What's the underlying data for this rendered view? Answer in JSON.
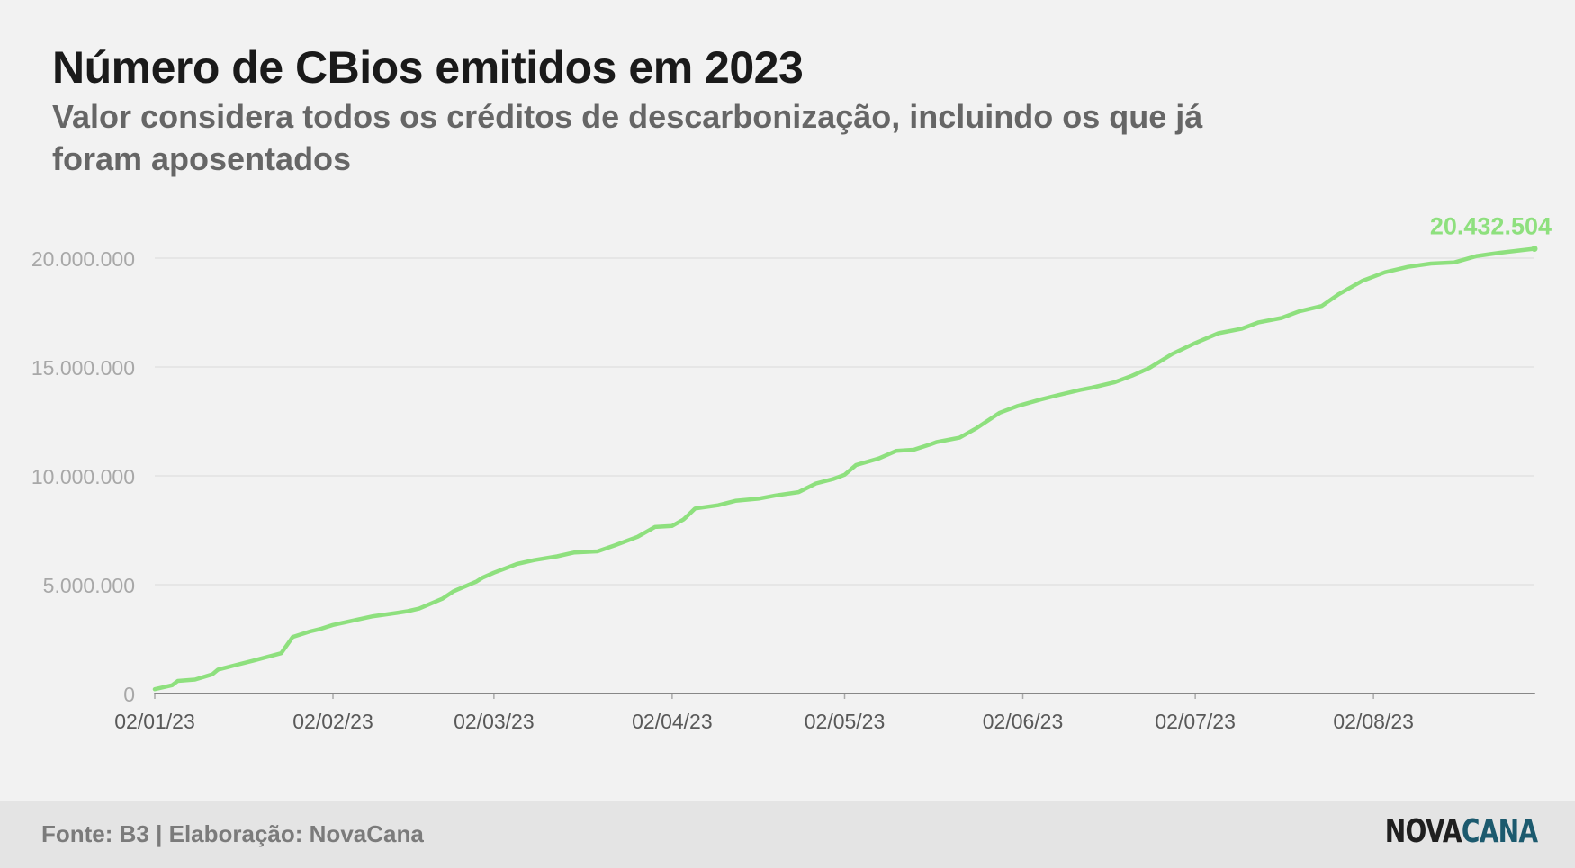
{
  "header": {
    "title": "Número de CBios emitidos em 2023",
    "subtitle": "Valor considera todos os créditos de descarbonização, incluindo os que já foram aposentados"
  },
  "footer": {
    "source": "Fonte: B3 | Elaboração: NovaCana",
    "logo_part1": "NOVA",
    "logo_part2": "CANA"
  },
  "colors": {
    "series": "#8ee07e",
    "baseline": "#888888",
    "grid": "#e2e2e2",
    "tick_text": "#a8a8a8",
    "x_tick_text": "#595959"
  },
  "chart_data": {
    "type": "line",
    "title": "Número de CBios emitidos em 2023",
    "subtitle": "Valor considera todos os créditos de descarbonização, incluindo os que já foram aposentados",
    "ylim": [
      0,
      20000000
    ],
    "y_ticks": [
      0,
      5000000,
      10000000,
      15000000,
      20000000
    ],
    "y_tick_labels": [
      "0",
      "5.000.000",
      "10.000.000",
      "15.000.000",
      "20.000.000"
    ],
    "xlim": [
      "2023-01-02",
      "2023-08-30"
    ],
    "x_ticks": [
      "2023-01-02",
      "2023-02-02",
      "2023-03-02",
      "2023-04-02",
      "2023-05-02",
      "2023-06-02",
      "2023-07-02",
      "2023-08-02"
    ],
    "x_tick_labels": [
      "02/01/23",
      "02/02/23",
      "02/03/23",
      "02/04/23",
      "02/05/23",
      "02/06/23",
      "02/07/23",
      "02/08/23"
    ],
    "grid": true,
    "end_label": "20.432.504",
    "series": [
      {
        "x": [
          "2023-01-02",
          "2023-01-05",
          "2023-01-06",
          "2023-01-09",
          "2023-01-12",
          "2023-01-13",
          "2023-01-16",
          "2023-01-19",
          "2023-01-24",
          "2023-01-26",
          "2023-01-29",
          "2023-01-31",
          "2023-02-02",
          "2023-02-06",
          "2023-02-09",
          "2023-02-13",
          "2023-02-15",
          "2023-02-17",
          "2023-02-21",
          "2023-02-23",
          "2023-02-27",
          "2023-02-28",
          "2023-03-02",
          "2023-03-06",
          "2023-03-09",
          "2023-03-13",
          "2023-03-16",
          "2023-03-20",
          "2023-03-23",
          "2023-03-27",
          "2023-03-30",
          "2023-04-02",
          "2023-04-04",
          "2023-04-06",
          "2023-04-10",
          "2023-04-13",
          "2023-04-17",
          "2023-04-20",
          "2023-04-24",
          "2023-04-27",
          "2023-04-30",
          "2023-05-02",
          "2023-05-04",
          "2023-05-08",
          "2023-05-11",
          "2023-05-14",
          "2023-05-17",
          "2023-05-18",
          "2023-05-22",
          "2023-05-25",
          "2023-05-29",
          "2023-06-01",
          "2023-06-05",
          "2023-06-08",
          "2023-06-12",
          "2023-06-14",
          "2023-06-18",
          "2023-06-21",
          "2023-06-24",
          "2023-06-28",
          "2023-07-02",
          "2023-07-06",
          "2023-07-10",
          "2023-07-13",
          "2023-07-17",
          "2023-07-20",
          "2023-07-24",
          "2023-07-27",
          "2023-07-31",
          "2023-08-04",
          "2023-08-08",
          "2023-08-12",
          "2023-08-16",
          "2023-08-20",
          "2023-08-24",
          "2023-08-30"
        ],
        "values": [
          200000,
          380000,
          580000,
          640000,
          880000,
          1100000,
          1300000,
          1500000,
          1850000,
          2600000,
          2850000,
          2980000,
          3150000,
          3380000,
          3550000,
          3700000,
          3780000,
          3900000,
          4350000,
          4700000,
          5150000,
          5320000,
          5550000,
          5950000,
          6130000,
          6300000,
          6480000,
          6530000,
          6800000,
          7200000,
          7650000,
          7700000,
          8000000,
          8500000,
          8650000,
          8850000,
          8950000,
          9100000,
          9250000,
          9650000,
          9850000,
          10050000,
          10500000,
          10800000,
          11150000,
          11200000,
          11450000,
          11550000,
          11750000,
          12200000,
          12900000,
          13200000,
          13500000,
          13700000,
          13950000,
          14050000,
          14300000,
          14600000,
          14950000,
          15600000,
          16100000,
          16550000,
          16750000,
          17050000,
          17250000,
          17550000,
          17800000,
          18350000,
          18950000,
          19350000,
          19600000,
          19750000,
          19800000,
          20100000,
          20250000,
          20432504
        ]
      },
      {
        "x": [
          "2023-01-02",
          "2023-03-01",
          "2023-03-02",
          "2023-08-30"
        ],
        "values": [
          0,
          0,
          0,
          0
        ]
      }
    ]
  }
}
